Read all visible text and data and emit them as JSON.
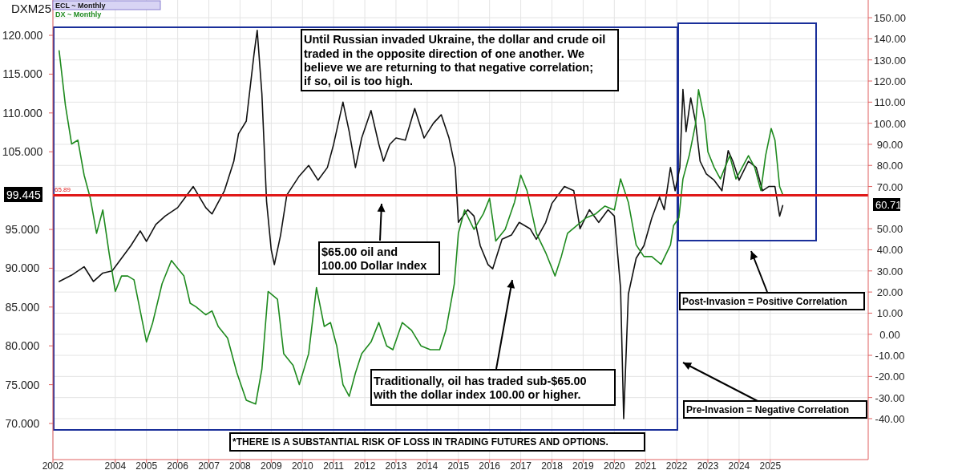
{
  "chart_data": {
    "type": "line",
    "title": "DXM25",
    "xlim": [
      2002,
      2028.14
    ],
    "xticks": [
      2002,
      2004,
      2005,
      2006,
      2007,
      2008,
      2009,
      2010,
      2011,
      2012,
      2013,
      2014,
      2015,
      2016,
      2017,
      2018,
      2019,
      2020,
      2021,
      2022,
      2023,
      2024,
      2025
    ],
    "ylim": [
      65.35,
      124.55
    ],
    "yticks": [
      {
        "value": 70,
        "label": "70.000"
      },
      {
        "value": 75,
        "label": "75.000"
      },
      {
        "value": 80,
        "label": "80.000"
      },
      {
        "value": 85,
        "label": "85.000"
      },
      {
        "value": 90,
        "label": "90.000"
      },
      {
        "value": 95,
        "label": "95.000"
      },
      {
        "value": 105,
        "label": "105.000"
      },
      {
        "value": 110,
        "label": "110.000"
      },
      {
        "value": 115,
        "label": "115.000"
      },
      {
        "value": 120,
        "label": "120.000"
      }
    ],
    "y2lim": [
      -59.4,
      158.4
    ],
    "y2ticks": [
      {
        "value": -40,
        "label": "-40.00"
      },
      {
        "value": -30,
        "label": "-30.00"
      },
      {
        "value": -20,
        "label": "-20.00"
      },
      {
        "value": -10,
        "label": "-10.00"
      },
      {
        "value": 0,
        "label": "0.00"
      },
      {
        "value": 10,
        "label": "10.00"
      },
      {
        "value": 20,
        "label": "20.00"
      },
      {
        "value": 30,
        "label": "30.00"
      },
      {
        "value": 40,
        "label": "40.00"
      },
      {
        "value": 50,
        "label": "50.00"
      },
      {
        "value": 70,
        "label": "70.00"
      },
      {
        "value": 80,
        "label": "80.00"
      },
      {
        "value": 90,
        "label": "90.00"
      },
      {
        "value": 100,
        "label": "100.00"
      },
      {
        "value": 110,
        "label": "110.00"
      },
      {
        "value": 120,
        "label": "120.00"
      },
      {
        "value": 130,
        "label": "130.00"
      },
      {
        "value": 140,
        "label": "140.00"
      },
      {
        "value": 150,
        "label": "150.00"
      }
    ],
    "grid": true,
    "legend": "top left",
    "series": [
      {
        "name": "ECL ~ Monthly",
        "color": "#111111",
        "axis": "y2",
        "x": [
          2002.2,
          2002.6,
          2003.0,
          2003.3,
          2003.6,
          2003.9,
          2004.2,
          2004.5,
          2004.8,
          2005.0,
          2005.3,
          2005.6,
          2006.0,
          2006.5,
          2006.9,
          2007.1,
          2007.5,
          2007.8,
          2007.95,
          2008.2,
          2008.45,
          2008.55,
          2008.7,
          2008.85,
          2009.0,
          2009.1,
          2009.3,
          2009.5,
          2009.9,
          2010.2,
          2010.5,
          2010.8,
          2011.0,
          2011.3,
          2011.5,
          2011.7,
          2011.9,
          2012.2,
          2012.45,
          2012.6,
          2012.8,
          2013.0,
          2013.3,
          2013.6,
          2013.9,
          2014.2,
          2014.45,
          2014.7,
          2014.9,
          2015.0,
          2015.3,
          2015.5,
          2015.7,
          2015.95,
          2016.1,
          2016.4,
          2016.7,
          2016.95,
          2017.3,
          2017.5,
          2017.8,
          2018.0,
          2018.4,
          2018.7,
          2018.9,
          2019.2,
          2019.5,
          2019.8,
          2020.0,
          2020.2,
          2020.3,
          2020.45,
          2020.7,
          2020.95,
          2021.2,
          2021.45,
          2021.6,
          2021.8,
          2021.95,
          2022.1,
          2022.2,
          2022.3,
          2022.45,
          2022.6,
          2022.75,
          2022.95,
          2023.2,
          2023.45,
          2023.65,
          2023.8,
          2024.0,
          2024.3,
          2024.55,
          2024.75,
          2024.95,
          2025.15,
          2025.3,
          2025.4
        ],
        "values": [
          25,
          28,
          32,
          25,
          29,
          30,
          36,
          42,
          49,
          44,
          52,
          56,
          60,
          70,
          60,
          57,
          68,
          82,
          95,
          101,
          133,
          144,
          114,
          63,
          40,
          33,
          47,
          66,
          75,
          80,
          73,
          79,
          90,
          110,
          96,
          79,
          93,
          106,
          90,
          82,
          90,
          93,
          92,
          107,
          93,
          100,
          104,
          93,
          79,
          53,
          59,
          56,
          42,
          33,
          31,
          45,
          47,
          53,
          50,
          45,
          53,
          62,
          70,
          68,
          50,
          59,
          53,
          59,
          56,
          22,
          -40,
          19,
          36,
          42,
          55,
          65,
          59,
          79,
          68,
          79,
          116,
          96,
          112,
          101,
          82,
          76,
          73,
          68,
          87,
          82,
          73,
          82,
          79,
          68,
          70,
          70,
          56,
          61
        ]
      },
      {
        "name": "DX ~ Monthly",
        "color": "#1e8a1e",
        "axis": "y",
        "x": [
          2002.2,
          2002.4,
          2002.6,
          2002.8,
          2003.0,
          2003.2,
          2003.4,
          2003.6,
          2003.8,
          2004.0,
          2004.2,
          2004.4,
          2004.6,
          2004.8,
          2005.0,
          2005.2,
          2005.5,
          2005.8,
          2006.0,
          2006.2,
          2006.4,
          2006.6,
          2006.9,
          2007.1,
          2007.3,
          2007.6,
          2007.9,
          2008.2,
          2008.5,
          2008.7,
          2008.9,
          2009.2,
          2009.4,
          2009.7,
          2009.9,
          2010.2,
          2010.45,
          2010.7,
          2010.9,
          2011.1,
          2011.3,
          2011.5,
          2011.7,
          2011.9,
          2012.2,
          2012.45,
          2012.7,
          2012.9,
          2013.2,
          2013.5,
          2013.8,
          2014.1,
          2014.4,
          2014.6,
          2014.87,
          2015.0,
          2015.2,
          2015.5,
          2015.8,
          2016.0,
          2016.2,
          2016.5,
          2016.8,
          2017.0,
          2017.2,
          2017.5,
          2017.8,
          2018.1,
          2018.3,
          2018.5,
          2018.8,
          2019.1,
          2019.4,
          2019.7,
          2020.0,
          2020.2,
          2020.45,
          2020.7,
          2020.95,
          2021.2,
          2021.5,
          2021.8,
          2021.9,
          2022.07,
          2022.2,
          2022.4,
          2022.6,
          2022.7,
          2022.9,
          2023.0,
          2023.2,
          2023.4,
          2023.7,
          2023.9,
          2024.1,
          2024.3,
          2024.5,
          2024.7,
          2024.85,
          2025.03,
          2025.15,
          2025.3,
          2025.4
        ],
        "values": [
          118,
          111,
          106,
          106.5,
          102,
          99,
          94.5,
          97.5,
          92,
          87,
          89,
          89,
          88.5,
          84.5,
          80.5,
          83,
          88,
          91,
          90,
          89,
          85.5,
          85,
          84,
          84.5,
          82.5,
          81,
          76.5,
          73,
          72.5,
          77,
          87,
          86,
          79,
          77.5,
          75,
          79,
          87.5,
          82.5,
          83,
          80,
          75,
          73.5,
          76.5,
          79,
          80.5,
          83,
          80,
          79.5,
          83,
          82,
          80,
          79.5,
          79.5,
          82,
          88,
          94.5,
          97.5,
          95,
          97,
          99,
          93.5,
          95,
          98.5,
          102,
          100,
          94.5,
          92,
          89,
          91.5,
          94.5,
          95.5,
          96.5,
          97,
          98,
          97.5,
          101.5,
          98.5,
          93,
          91.5,
          91.5,
          90.5,
          93,
          95.5,
          96.5,
          101.5,
          104.5,
          108.5,
          113,
          109,
          105,
          103,
          101.5,
          104.5,
          101.5,
          103,
          104.5,
          103,
          100,
          104.5,
          108,
          106.5,
          100.5,
          99.5
        ]
      }
    ],
    "ref_lines": [
      {
        "axis": "y2",
        "value": 65.89,
        "label": "65.89",
        "color": "#e01818"
      }
    ],
    "annotations": [
      "Until Russian invaded Ukraine, the dollar and crude oil\ntraded in the opposite direction of one another. We\nbelieve we are returning to that negative correlation;\nif so, oil is too high.",
      "$65.00 oil and\n100.00 Dollar Index",
      "Traditionally, oil has traded sub-$65.00\nwith the dollar index 100.00 or higher.",
      "Post-Invasion = Positive Correlation",
      "Pre-Invasion = Negative Correlation",
      "*THERE IS A SUBSTANTIAL RISK OF LOSS IN TRADING FUTURES AND OPTIONS.",
      "99.445",
      "60.71"
    ]
  }
}
